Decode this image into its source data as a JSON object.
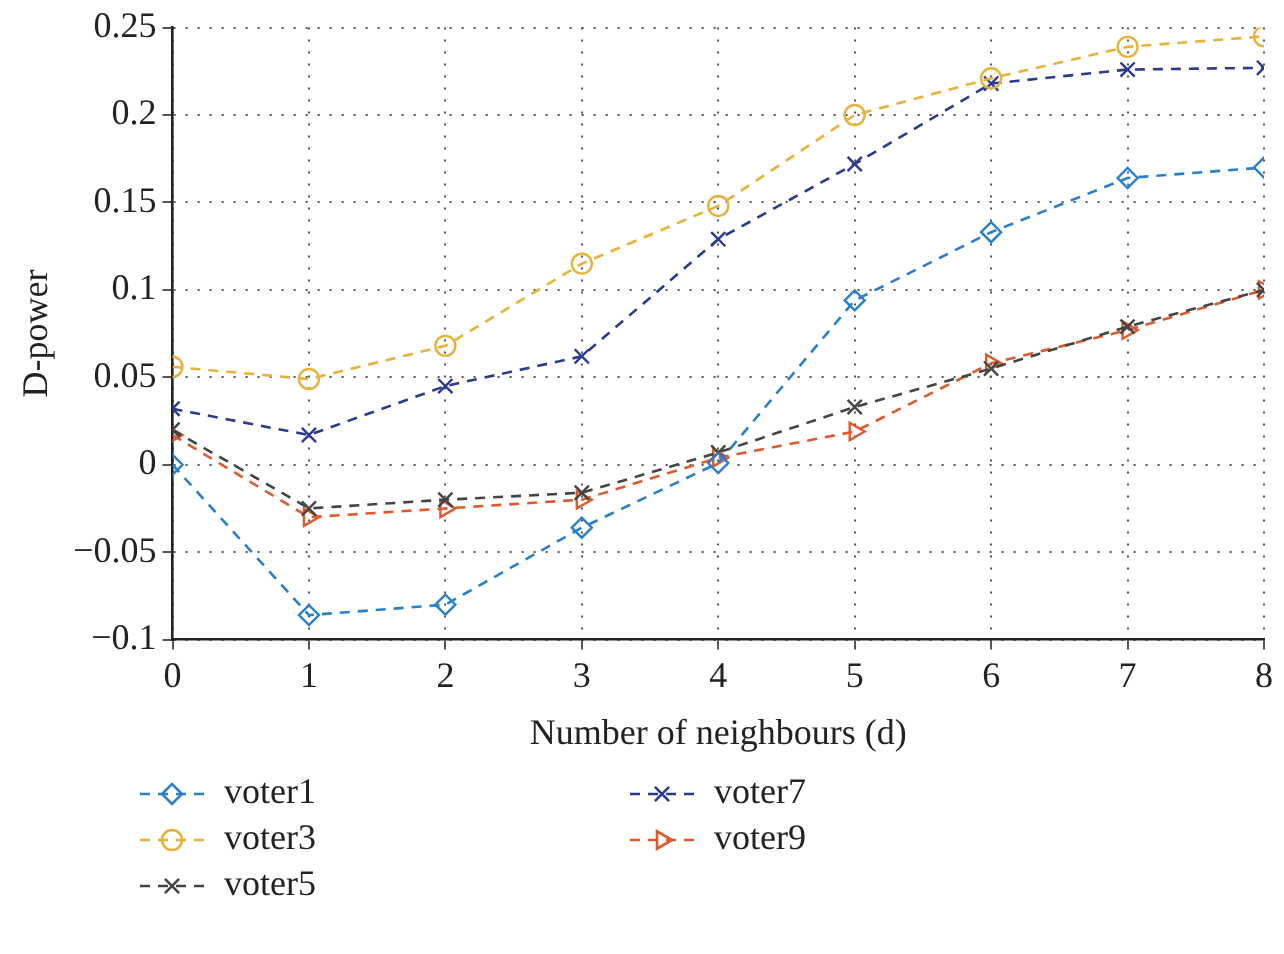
{
  "chart_data": {
    "type": "line",
    "xlabel": "Number of neighbours (d)",
    "ylabel": "D-power",
    "x": [
      0,
      1,
      2,
      3,
      4,
      5,
      6,
      7,
      8
    ],
    "xlim": [
      0,
      8
    ],
    "xticks": [
      0,
      1,
      2,
      3,
      4,
      5,
      6,
      7,
      8
    ],
    "ylim": [
      -0.1,
      0.25
    ],
    "yticks": [
      -0.1,
      -0.05,
      0,
      0.05,
      0.1,
      0.15,
      0.2,
      0.25
    ],
    "grid": true,
    "legend": "bottom",
    "line_style": "dashed",
    "series": [
      {
        "name": "voter1",
        "color": "#2a7fc9",
        "marker": "diamond",
        "values": [
          0,
          -0.086,
          -0.08,
          -0.036,
          0.001,
          0.094,
          0.133,
          0.164,
          0.17
        ]
      },
      {
        "name": "voter3",
        "color": "#e8b23a",
        "marker": "circle",
        "values": [
          0.056,
          0.049,
          0.068,
          0.115,
          0.148,
          0.2,
          0.221,
          0.239,
          0.245
        ]
      },
      {
        "name": "voter5",
        "color": "#444444",
        "marker": "cross",
        "values": [
          0.02,
          -0.025,
          -0.02,
          -0.016,
          0.007,
          0.033,
          0.055,
          0.079,
          0.1
        ]
      },
      {
        "name": "voter7",
        "color": "#2b3a8f",
        "marker": "cross",
        "values": [
          0.032,
          0.017,
          0.045,
          0.062,
          0.129,
          0.172,
          0.218,
          0.226,
          0.227
        ]
      },
      {
        "name": "voter9",
        "color": "#de5a2e",
        "marker": "triangle",
        "values": [
          0.017,
          -0.03,
          -0.025,
          -0.02,
          0.004,
          0.019,
          0.058,
          0.077,
          0.1
        ]
      }
    ]
  }
}
